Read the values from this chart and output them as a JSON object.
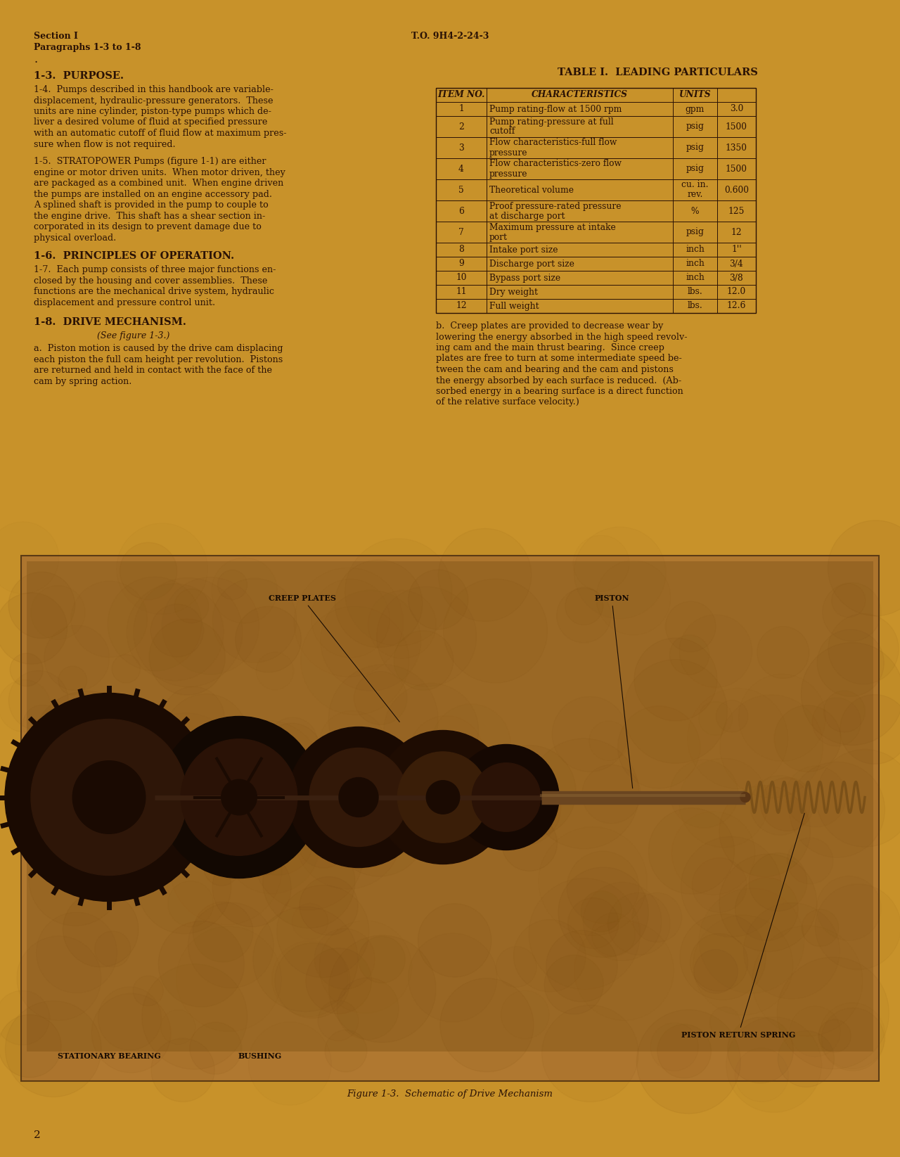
{
  "bg_color": "#c8922a",
  "text_color": "#2a1205",
  "header_left_line1": "Section I",
  "header_left_line2": "Paragraphs 1-3 to 1-8",
  "header_right": "T.O. 9H4-2-24-3",
  "table_title": "TABLE I.  LEADING PARTICULARS",
  "table_headers": [
    "ITEM NO.",
    "CHARACTERISTICS",
    "UNITS",
    ""
  ],
  "table_rows": [
    [
      "1",
      "Pump rating-flow at 1500 rpm",
      "gpm",
      "3.0"
    ],
    [
      "2",
      "Pump rating-pressure at full\ncutoff",
      "psig",
      "1500"
    ],
    [
      "3",
      "Flow characteristics-full flow\npressure",
      "psig",
      "1350"
    ],
    [
      "4",
      "Flow characteristics-zero flow\npressure",
      "psig",
      "1500"
    ],
    [
      "5",
      "Theoretical volume",
      "cu. in.\nrev.",
      "0.600"
    ],
    [
      "6",
      "Proof pressure-rated pressure\nat discharge port",
      "%",
      "125"
    ],
    [
      "7",
      "Maximum pressure at intake\nport",
      "psig",
      "12"
    ],
    [
      "8",
      "Intake port size",
      "inch",
      "1''"
    ],
    [
      "9",
      "Discharge port size",
      "inch",
      "3/4"
    ],
    [
      "10",
      "Bypass port size",
      "inch",
      "3/8"
    ],
    [
      "11",
      "Dry weight",
      "lbs.",
      "12.0"
    ],
    [
      "12",
      "Full weight",
      "lbs.",
      "12.6"
    ]
  ],
  "figure_caption": "Figure 1-3.  Schematic of Drive Mechanism",
  "page_number": "2",
  "fig_bg": "#b07830",
  "fig_inner_bg": "#9a6825",
  "shaft_color": "#3a2010",
  "disk_dark": "#1a0a02",
  "disk_mid": "#3a1e08",
  "disk_light": "#5a3010",
  "spring_color": "#7a5018",
  "label_color": "#160a02"
}
